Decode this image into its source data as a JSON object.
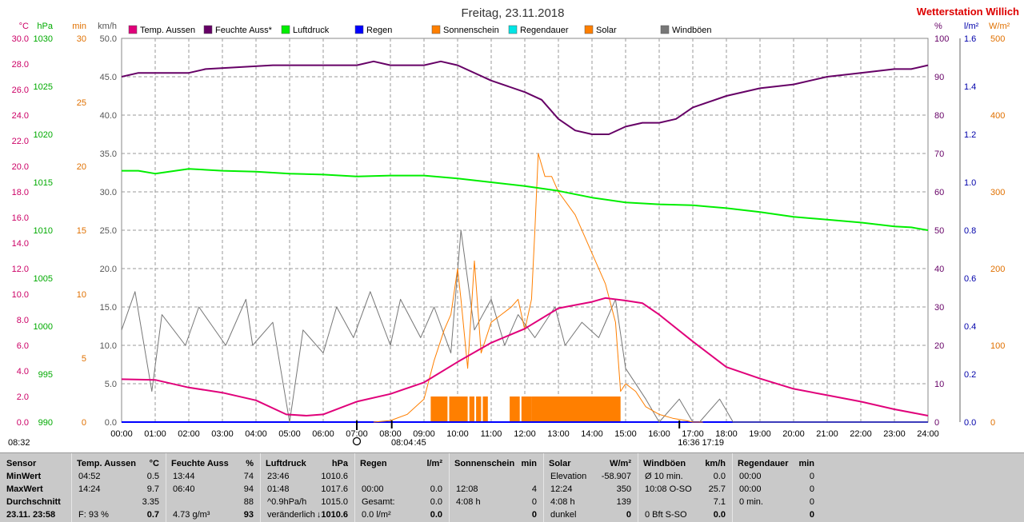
{
  "title": "Freitag, 23.11.2018",
  "station": "Wetterstation Willich",
  "chart_data": {
    "type": "line",
    "x_domain_hours": [
      0,
      24
    ],
    "x_ticks": [
      "00:00",
      "01:00",
      "02:00",
      "03:00",
      "04:00",
      "05:00",
      "06:00",
      "07:00",
      "08:00",
      "09:00",
      "10:00",
      "11:00",
      "12:00",
      "13:00",
      "14:00",
      "15:00",
      "16:00",
      "17:00",
      "18:00",
      "19:00",
      "20:00",
      "21:00",
      "22:00",
      "23:00",
      "24:00"
    ],
    "left_axes": [
      {
        "unit": "°C",
        "color": "#cc0066",
        "ticks": [
          "30.0",
          "28.0",
          "26.0",
          "24.0",
          "22.0",
          "20.0",
          "18.0",
          "16.0",
          "14.0",
          "12.0",
          "10.0",
          "8.0",
          "6.0",
          "4.0",
          "2.0",
          "0.0"
        ]
      },
      {
        "unit": "hPa",
        "color": "#00aa00",
        "ticks": [
          "1030",
          "1025",
          "1020",
          "1015",
          "1010",
          "1005",
          "1000",
          "995",
          "990"
        ]
      },
      {
        "unit": "min",
        "color": "#e07000",
        "ticks": [
          "30",
          "25",
          "20",
          "15",
          "10",
          "5",
          "0"
        ]
      },
      {
        "unit": "km/h",
        "color": "#555555",
        "ticks": [
          "50.0",
          "45.0",
          "40.0",
          "35.0",
          "30.0",
          "25.0",
          "20.0",
          "15.0",
          "10.0",
          "5.0",
          "0.0"
        ]
      }
    ],
    "right_axes": [
      {
        "unit": "%",
        "color": "#660066",
        "ticks": [
          "100",
          "90",
          "80",
          "70",
          "60",
          "50",
          "40",
          "30",
          "20",
          "10",
          "0"
        ]
      },
      {
        "unit": "l/m²",
        "color": "#0000aa",
        "ticks": [
          "1.6",
          "1.4",
          "1.2",
          "1.0",
          "0.8",
          "0.6",
          "0.4",
          "0.2",
          "0.0"
        ]
      },
      {
        "unit": "W/m²",
        "color": "#e07000",
        "ticks": [
          "500",
          "400",
          "300",
          "200",
          "100",
          "0"
        ]
      }
    ],
    "legend": [
      {
        "label": "Temp. Aussen",
        "color": "#e0007a"
      },
      {
        "label": "Feuchte Auss*",
        "color": "#660066"
      },
      {
        "label": "Luftdruck",
        "color": "#00ee00"
      },
      {
        "label": "Regen",
        "color": "#0000ff"
      },
      {
        "label": "Sonnenschein",
        "color": "#ff7f00"
      },
      {
        "label": "Regendauer",
        "color": "#00e5e5"
      },
      {
        "label": "Solar",
        "color": "#ff7f00"
      },
      {
        "label": "Windböen",
        "color": "#777777"
      }
    ],
    "series": [
      {
        "name": "Temp. Aussen",
        "unit": "°C",
        "color": "#e0007a",
        "x": [
          0,
          1,
          2,
          3,
          4,
          4.9,
          5.5,
          6,
          7,
          8,
          9,
          10,
          11,
          12,
          13,
          14,
          14.4,
          15,
          15.5,
          16,
          17,
          18,
          19,
          20,
          21,
          22,
          23,
          24
        ],
        "y": [
          3.35,
          3.3,
          2.7,
          2.3,
          1.7,
          0.6,
          0.5,
          0.6,
          1.6,
          2.2,
          3.1,
          4.7,
          6.2,
          7.3,
          8.9,
          9.4,
          9.7,
          9.5,
          9.3,
          8.4,
          6.3,
          4.3,
          3.4,
          2.6,
          2.1,
          1.6,
          1.0,
          0.5
        ]
      },
      {
        "name": "Feuchte Auss*",
        "unit": "%",
        "color": "#660066",
        "x": [
          0,
          0.5,
          2,
          2.5,
          4.5,
          7,
          7.5,
          8,
          9,
          9.5,
          10,
          11,
          12,
          12.5,
          13,
          13.5,
          14,
          14.5,
          15,
          15.5,
          16,
          16.5,
          17,
          18,
          19,
          20,
          21,
          22,
          23,
          23.5,
          24
        ],
        "y": [
          90,
          91,
          91,
          92,
          93,
          93,
          94,
          93,
          93,
          94,
          93,
          89,
          86,
          84,
          79,
          76,
          75,
          75,
          77,
          78,
          78,
          79,
          82,
          85,
          87,
          88,
          90,
          91,
          92,
          92,
          93
        ]
      },
      {
        "name": "Luftdruck",
        "unit": "hPa",
        "color": "#00ee00",
        "x": [
          0,
          0.5,
          1,
          2,
          3,
          4,
          5,
          6,
          7,
          8,
          9,
          10,
          11,
          12,
          13,
          14,
          15,
          16,
          17,
          18,
          19,
          20,
          21,
          22,
          23,
          23.5,
          24
        ],
        "y": [
          1016.2,
          1016.2,
          1015.9,
          1016.4,
          1016.2,
          1016.1,
          1015.9,
          1015.8,
          1015.6,
          1015.7,
          1015.7,
          1015.4,
          1015.0,
          1014.6,
          1014.1,
          1013.4,
          1012.9,
          1012.7,
          1012.6,
          1012.3,
          1011.9,
          1011.4,
          1011.1,
          1010.8,
          1010.4,
          1010.3,
          1010.0
        ]
      },
      {
        "name": "Solar",
        "unit": "W/m²",
        "color": "#ff7f00",
        "x": [
          7.5,
          8.0,
          8.5,
          9.0,
          9.3,
          9.6,
          9.8,
          10.0,
          10.1,
          10.3,
          10.5,
          10.7,
          11.0,
          11.3,
          11.6,
          11.8,
          12.0,
          12.2,
          12.3,
          12.4,
          12.6,
          12.8,
          13.0,
          13.5,
          14.0,
          14.4,
          14.7,
          14.85,
          15.0,
          15.3,
          15.6,
          16.0,
          16.4,
          16.8,
          17.0,
          17.3
        ],
        "y": [
          0,
          2,
          10,
          30,
          80,
          120,
          140,
          200,
          160,
          70,
          210,
          90,
          130,
          140,
          150,
          160,
          120,
          160,
          250,
          350,
          320,
          320,
          300,
          270,
          220,
          180,
          130,
          40,
          50,
          40,
          20,
          10,
          5,
          2,
          0,
          0
        ]
      },
      {
        "name": "Windböen",
        "unit": "km/h",
        "color": "#777777",
        "x": [
          0,
          0.4,
          0.9,
          1.2,
          1.9,
          2.3,
          3.1,
          3.7,
          3.9,
          4.5,
          5.0,
          5.4,
          6.0,
          6.4,
          6.9,
          7.4,
          8.0,
          8.3,
          8.9,
          9.3,
          9.8,
          10.1,
          10.5,
          11.0,
          11.4,
          11.8,
          12.3,
          12.9,
          13.2,
          13.7,
          14.2,
          14.7,
          15.0,
          15.6,
          16.0,
          16.6,
          17.0,
          17.2,
          17.8,
          18.2,
          18.6,
          24.0
        ],
        "y": [
          12,
          17,
          4,
          14,
          10,
          15,
          10,
          16,
          10,
          13,
          0,
          12,
          9,
          15,
          11,
          17,
          10,
          16,
          11,
          15,
          9,
          25,
          12,
          16,
          10,
          14,
          11,
          15,
          10,
          13,
          11,
          16,
          7,
          3,
          0,
          3,
          0,
          0,
          3,
          0,
          0,
          0
        ]
      },
      {
        "name": "Regen",
        "unit": "l/m²",
        "color": "#0000ff",
        "x": [
          0,
          24
        ],
        "y": [
          0,
          0
        ]
      }
    ],
    "bars": {
      "name": "Sonnenschein",
      "unit": "min",
      "color": "#ff7f00",
      "x_start": [
        9.2,
        9.75,
        10.35,
        10.55,
        10.75,
        11.55,
        11.9,
        12.2
      ],
      "x_end": [
        9.7,
        10.3,
        10.5,
        10.7,
        10.9,
        11.85,
        12.2,
        14.85
      ],
      "value": [
        2,
        2,
        2,
        2,
        2,
        2,
        2,
        2
      ]
    },
    "markers": [
      {
        "label": "08:32",
        "x_hours": 7.2
      },
      {
        "label": "08:04",
        "x_hours": 8.07
      },
      {
        "label": ":45",
        "x_hours": 8.75
      },
      {
        "label": "16:36",
        "x_hours": 16.6
      },
      {
        "label": "17:19",
        "x_hours": 17.32
      }
    ]
  },
  "table": {
    "row_labels": [
      "Sensor",
      "MinWert",
      "MaxWert",
      "Durchschnitt",
      "23.11.  23:58"
    ],
    "groups": [
      {
        "title": "Temp. Aussen",
        "unit": "°C",
        "rows": [
          [
            "04:52",
            "0.5"
          ],
          [
            "14:24",
            "9.7"
          ],
          [
            "",
            "3.35"
          ],
          [
            "F: 93 %",
            "0.7"
          ]
        ]
      },
      {
        "title": "Feuchte Auss",
        "unit": "%",
        "rows": [
          [
            "13:44",
            "74"
          ],
          [
            "06:40",
            "94"
          ],
          [
            "",
            "88"
          ],
          [
            "4.73 g/m³",
            "93"
          ]
        ]
      },
      {
        "title": "Luftdruck",
        "unit": "hPa",
        "rows": [
          [
            "23:46",
            "1010.6"
          ],
          [
            "01:48",
            "1017.6"
          ],
          [
            "^0.9hPa/h",
            "1015.0"
          ],
          [
            "veränderlich",
            "↓1010.6"
          ]
        ]
      },
      {
        "title": "Regen",
        "unit": "l/m²",
        "rows": [
          [
            "",
            ""
          ],
          [
            "00:00",
            "0.0"
          ],
          [
            "Gesamt:",
            "0.0"
          ],
          [
            "0.0 l/m²",
            "0.0"
          ]
        ]
      },
      {
        "title": "Sonnenschein",
        "unit": "min",
        "rows": [
          [
            "",
            ""
          ],
          [
            "12:08",
            "4"
          ],
          [
            "4:08 h",
            "0"
          ],
          [
            "",
            "0"
          ]
        ]
      },
      {
        "title": "Solar",
        "unit": "W/m²",
        "rows": [
          [
            "Elevation",
            "-58.907"
          ],
          [
            "12:24",
            "350"
          ],
          [
            "4:08 h",
            "139"
          ],
          [
            "dunkel",
            "0"
          ]
        ]
      },
      {
        "title": "Windböen",
        "unit": "km/h",
        "rows": [
          [
            "Ø 10 min.",
            "0.0"
          ],
          [
            "10:08  O-SO",
            "25.7"
          ],
          [
            "",
            "7.1"
          ],
          [
            "0 Bft S-SO",
            "0.0"
          ]
        ]
      },
      {
        "title": "Regendauer",
        "unit": "min",
        "rows": [
          [
            "00:00",
            "0"
          ],
          [
            "00:00",
            "0"
          ],
          [
            "0 min.",
            "0"
          ],
          [
            "",
            "0"
          ]
        ]
      }
    ]
  }
}
